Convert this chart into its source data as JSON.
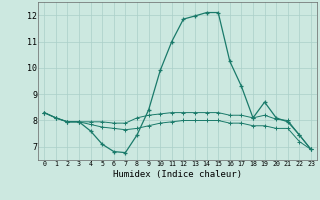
{
  "xlabel": "Humidex (Indice chaleur)",
  "xlim": [
    -0.5,
    23.5
  ],
  "ylim": [
    6.5,
    12.5
  ],
  "yticks": [
    7,
    8,
    9,
    10,
    11,
    12
  ],
  "xticks": [
    0,
    1,
    2,
    3,
    4,
    5,
    6,
    7,
    8,
    9,
    10,
    11,
    12,
    13,
    14,
    15,
    16,
    17,
    18,
    19,
    20,
    21,
    22,
    23
  ],
  "bg_color": "#cce8e0",
  "grid_color": "#aacfc8",
  "line_color": "#1a7a6a",
  "line1": {
    "x": [
      0,
      1,
      2,
      3,
      4,
      5,
      6,
      7,
      8,
      9,
      10,
      11,
      12,
      13,
      14,
      15,
      16,
      17,
      18,
      19,
      20,
      21,
      22,
      23
    ],
    "y": [
      8.3,
      8.1,
      7.95,
      7.95,
      7.6,
      7.1,
      6.82,
      6.78,
      7.45,
      8.4,
      9.9,
      11.0,
      11.85,
      11.97,
      12.1,
      12.1,
      10.25,
      9.3,
      8.1,
      8.7,
      8.1,
      7.95,
      7.45,
      6.9
    ]
  },
  "line2": {
    "x": [
      0,
      1,
      2,
      3,
      4,
      5,
      6,
      7,
      8,
      9,
      10,
      11,
      12,
      13,
      14,
      15,
      16,
      17,
      18,
      19,
      20,
      21,
      22,
      23
    ],
    "y": [
      8.3,
      8.1,
      7.95,
      7.95,
      7.95,
      7.95,
      7.9,
      7.9,
      8.1,
      8.2,
      8.25,
      8.3,
      8.3,
      8.3,
      8.3,
      8.3,
      8.2,
      8.2,
      8.1,
      8.2,
      8.05,
      8.0,
      7.45,
      6.9
    ]
  },
  "line3": {
    "x": [
      0,
      1,
      2,
      3,
      4,
      5,
      6,
      7,
      8,
      9,
      10,
      11,
      12,
      13,
      14,
      15,
      16,
      17,
      18,
      19,
      20,
      21,
      22,
      23
    ],
    "y": [
      8.3,
      8.1,
      7.95,
      7.95,
      7.85,
      7.75,
      7.7,
      7.65,
      7.7,
      7.8,
      7.9,
      7.95,
      8.0,
      8.0,
      8.0,
      8.0,
      7.9,
      7.9,
      7.8,
      7.8,
      7.7,
      7.7,
      7.2,
      6.9
    ]
  }
}
